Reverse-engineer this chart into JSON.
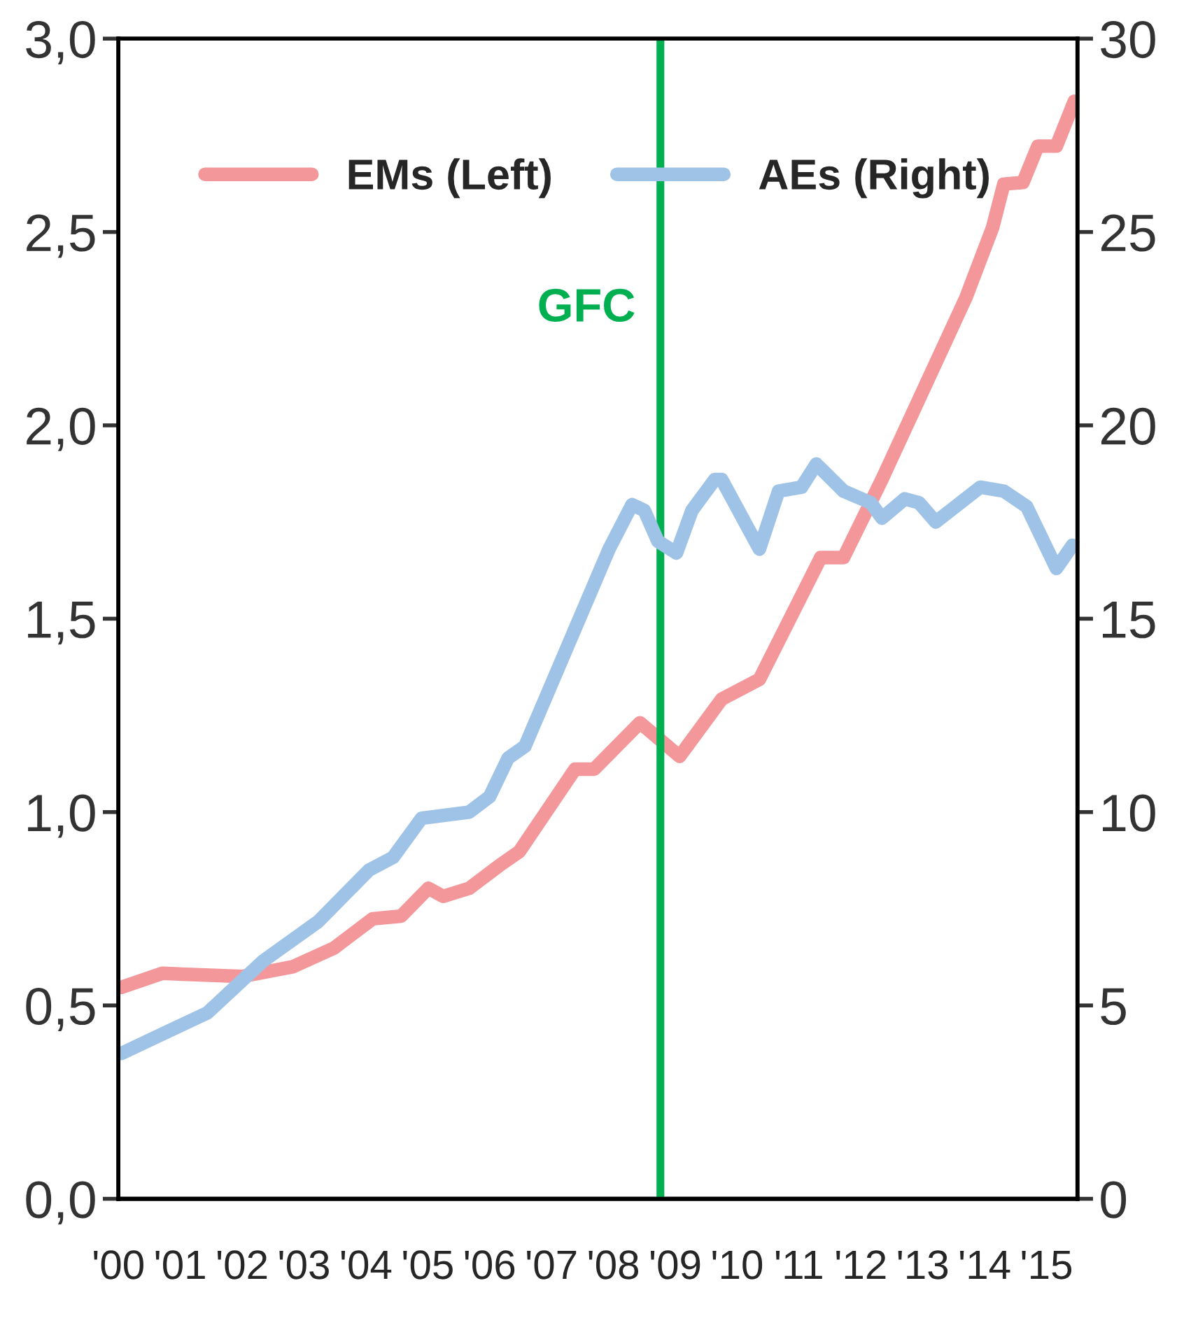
{
  "chart_data": {
    "type": "line",
    "x": [
      0.05,
      0.71,
      2.0,
      2.82,
      3.48,
      4.11,
      4.57,
      5.01,
      5.25,
      5.67,
      6.15,
      6.48,
      7.38,
      7.69,
      8.43,
      9.07,
      9.75,
      10.36,
      11.35,
      11.72,
      12.34,
      13.7,
      14.13,
      14.31,
      14.62,
      14.86,
      15.16,
      15.45
    ],
    "series": [
      {
        "name": "EMs (Left)",
        "color": "#f4979a",
        "axis": "y",
        "values": [
          0.547,
          0.583,
          0.575,
          0.6,
          0.648,
          0.724,
          0.731,
          0.803,
          0.782,
          0.803,
          0.861,
          0.898,
          1.111,
          1.111,
          1.231,
          1.144,
          1.292,
          1.343,
          1.658,
          1.658,
          1.86,
          2.331,
          2.512,
          2.624,
          2.628,
          2.722,
          2.722,
          2.838
        ]
      },
      {
        "name": "AEs (Right)",
        "color": "#9fc3e6",
        "axis": "y2",
        "x": [
          0.05,
          1.44,
          2.34,
          3.23,
          4.05,
          4.44,
          4.9,
          5.67,
          6.0,
          6.3,
          6.57,
          7.93,
          8.3,
          8.5,
          8.72,
          9.02,
          9.27,
          9.64,
          9.75,
          10.36,
          10.67,
          11.04,
          11.28,
          11.72,
          12.16,
          12.34,
          12.71,
          12.94,
          13.21,
          13.93,
          14.31,
          14.68,
          15.16,
          15.42
        ],
        "values": [
          3.76,
          4.81,
          6.15,
          7.17,
          8.5,
          8.83,
          9.84,
          10.0,
          10.4,
          11.4,
          11.7,
          16.8,
          17.95,
          17.8,
          17.0,
          16.7,
          17.8,
          18.6,
          18.6,
          16.8,
          18.3,
          18.4,
          19.0,
          18.3,
          18.0,
          17.6,
          18.1,
          18.0,
          17.5,
          18.4,
          18.3,
          17.9,
          16.3,
          16.9
        ]
      }
    ],
    "xlim": [
      0,
      15.5
    ],
    "xticks": [
      {
        "value": 0,
        "label": "'00"
      },
      {
        "value": 1,
        "label": "'01"
      },
      {
        "value": 2,
        "label": "'02"
      },
      {
        "value": 3,
        "label": "'03"
      },
      {
        "value": 4,
        "label": "'04"
      },
      {
        "value": 5,
        "label": "'05"
      },
      {
        "value": 6,
        "label": "'06"
      },
      {
        "value": 7,
        "label": "'07"
      },
      {
        "value": 8,
        "label": "'08"
      },
      {
        "value": 9,
        "label": "'09"
      },
      {
        "value": 10,
        "label": "'10"
      },
      {
        "value": 11,
        "label": "'11"
      },
      {
        "value": 12,
        "label": "'12"
      },
      {
        "value": 13,
        "label": "'13"
      },
      {
        "value": 14,
        "label": "'14"
      },
      {
        "value": 15,
        "label": "'15"
      }
    ],
    "ylim": [
      0,
      3.0
    ],
    "yticks": [
      {
        "value": 0,
        "label": "0,0"
      },
      {
        "value": 0.5,
        "label": "0,5"
      },
      {
        "value": 1.0,
        "label": "1,0"
      },
      {
        "value": 1.5,
        "label": "1,5"
      },
      {
        "value": 2.0,
        "label": "2,0"
      },
      {
        "value": 2.5,
        "label": "2,5"
      },
      {
        "value": 3.0,
        "label": "3,0"
      }
    ],
    "y2lim": [
      0,
      30
    ],
    "y2ticks": [
      0,
      5,
      10,
      15,
      20,
      25,
      30
    ],
    "ref_lines": [
      {
        "axis": "x",
        "value": 8.76,
        "label": "GFC",
        "color": "#00b050",
        "line_style": "solid"
      }
    ],
    "legend": "top",
    "grid": false,
    "line_style": "solid",
    "marker": "none"
  }
}
